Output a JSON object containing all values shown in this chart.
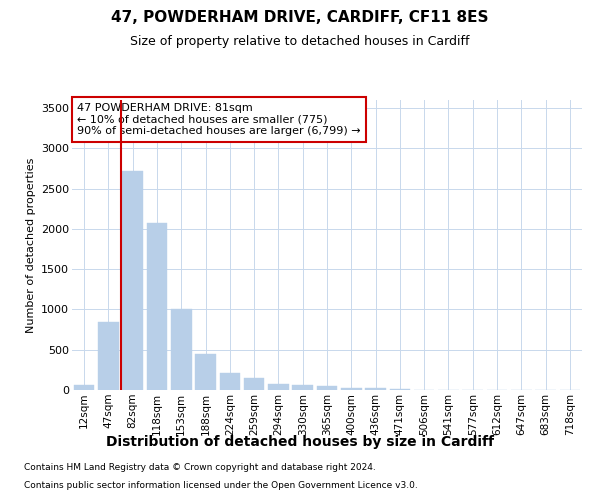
{
  "title": "47, POWDERHAM DRIVE, CARDIFF, CF11 8ES",
  "subtitle": "Size of property relative to detached houses in Cardiff",
  "xlabel": "Distribution of detached houses by size in Cardiff",
  "ylabel": "Number of detached properties",
  "footnote1": "Contains HM Land Registry data © Crown copyright and database right 2024.",
  "footnote2": "Contains public sector information licensed under the Open Government Licence v3.0.",
  "annotation_line1": "47 POWDERHAM DRIVE: 81sqm",
  "annotation_line2": "← 10% of detached houses are smaller (775)",
  "annotation_line3": "90% of semi-detached houses are larger (6,799) →",
  "categories": [
    "12sqm",
    "47sqm",
    "82sqm",
    "118sqm",
    "153sqm",
    "188sqm",
    "224sqm",
    "259sqm",
    "294sqm",
    "330sqm",
    "365sqm",
    "400sqm",
    "436sqm",
    "471sqm",
    "506sqm",
    "541sqm",
    "577sqm",
    "612sqm",
    "647sqm",
    "683sqm",
    "718sqm"
  ],
  "bar_values": [
    60,
    850,
    2720,
    2070,
    1010,
    450,
    215,
    150,
    75,
    65,
    55,
    30,
    20,
    15,
    0,
    0,
    0,
    0,
    0,
    0,
    0
  ],
  "bar_color": "#b8cfe8",
  "bar_edgecolor": "#b8cfe8",
  "vline_color": "#cc0000",
  "vline_x_pos": 1.5,
  "annotation_box_edgecolor": "#cc0000",
  "background_color": "#ffffff",
  "grid_color": "#c8d8ec",
  "ylim": [
    0,
    3600
  ],
  "yticks": [
    0,
    500,
    1000,
    1500,
    2000,
    2500,
    3000,
    3500
  ],
  "title_fontsize": 11,
  "subtitle_fontsize": 9,
  "xlabel_fontsize": 10,
  "ylabel_fontsize": 8,
  "tick_fontsize": 8,
  "xtick_fontsize": 7.5,
  "footnote_fontsize": 6.5
}
